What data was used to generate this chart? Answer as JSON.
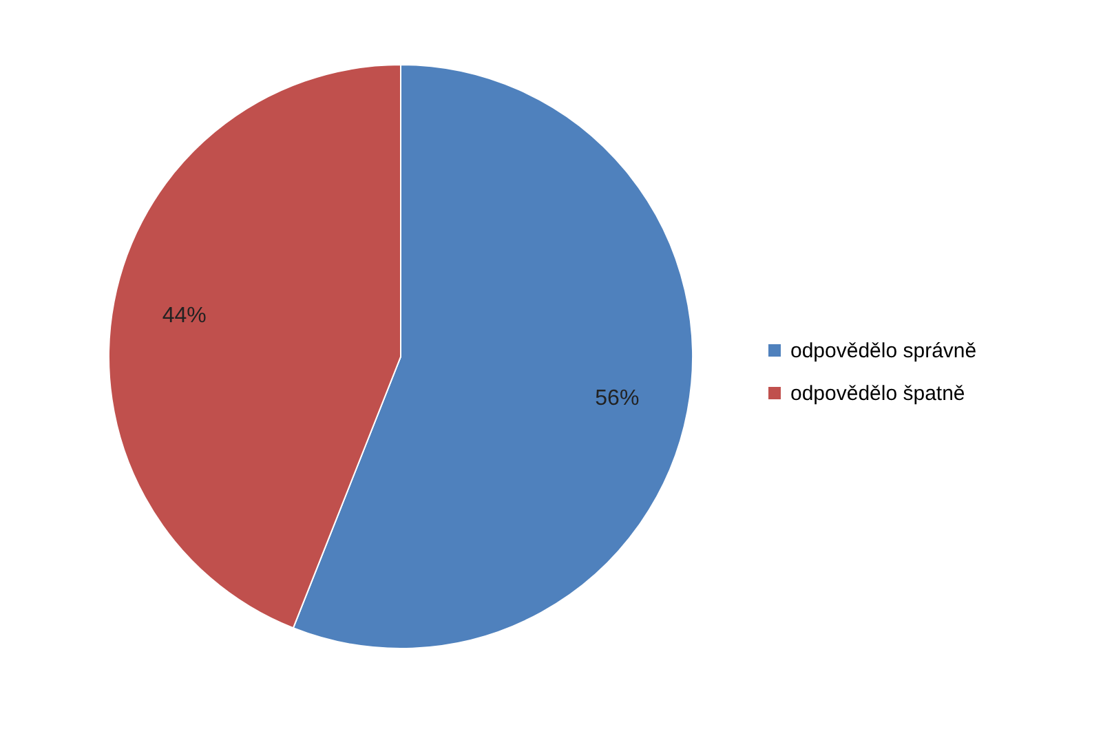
{
  "chart_data": {
    "type": "pie",
    "categories": [
      "odpovědělo správně",
      "odpovědělo špatně"
    ],
    "values": [
      56,
      44
    ],
    "colors": [
      "#4f81bd",
      "#c0504d"
    ],
    "value_labels": [
      "56%",
      "44%"
    ],
    "legend": "right"
  }
}
